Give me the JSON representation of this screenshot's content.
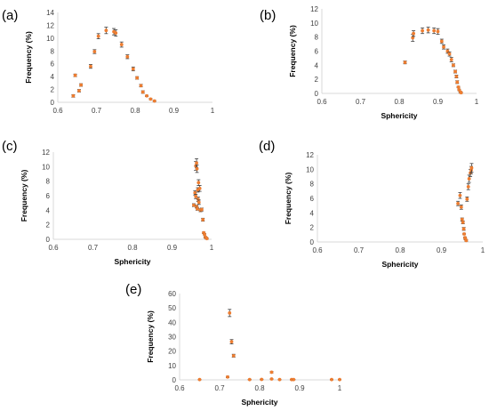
{
  "colors": {
    "points": "#ed7d31",
    "error_bars": "#404040",
    "axis": "#d9d9d9"
  },
  "chart_data": [
    {
      "id": "a",
      "type": "scatter",
      "panel_label": "(a)",
      "xlabel": "",
      "ylabel": "Frequency (%)",
      "xlim": [
        0.6,
        1
      ],
      "ylim": [
        0,
        14
      ],
      "xticks": [
        "0.6",
        "0.7",
        "0.8",
        "0.9",
        "1"
      ],
      "yticks": [
        "0",
        "2",
        "4",
        "6",
        "8",
        "10",
        "12",
        "14"
      ],
      "x": [
        0.64,
        0.645,
        0.655,
        0.66,
        0.685,
        0.695,
        0.705,
        0.725,
        0.745,
        0.75,
        0.765,
        0.78,
        0.795,
        0.805,
        0.815,
        0.82,
        0.83,
        0.84,
        0.85
      ],
      "y": [
        1.0,
        4.2,
        1.8,
        2.7,
        5.6,
        7.9,
        10.3,
        11.2,
        11.0,
        10.8,
        9.0,
        7.1,
        5.2,
        3.8,
        2.6,
        1.6,
        1.0,
        0.5,
        0.2
      ],
      "err": [
        0.2,
        0.2,
        0.2,
        0.2,
        0.3,
        0.3,
        0.4,
        0.5,
        0.5,
        0.5,
        0.4,
        0.3,
        0.3,
        0.2,
        0.2,
        0.2,
        0.1,
        0.1,
        0.1
      ]
    },
    {
      "id": "b",
      "type": "scatter",
      "panel_label": "(b)",
      "xlabel": "Sphericity",
      "ylabel": "Frequency (%)",
      "xlim": [
        0.6,
        1
      ],
      "ylim": [
        0,
        12
      ],
      "xticks": [
        "0.6",
        "0.7",
        "0.8",
        "0.9",
        "1"
      ],
      "yticks": [
        "0",
        "2",
        "4",
        "6",
        "8",
        "10",
        "12"
      ],
      "x": [
        0.815,
        0.835,
        0.837,
        0.86,
        0.875,
        0.89,
        0.9,
        0.91,
        0.915,
        0.925,
        0.93,
        0.935,
        0.94,
        0.945,
        0.948,
        0.95,
        0.953,
        0.955,
        0.958,
        0.96
      ],
      "y": [
        4.4,
        7.9,
        8.5,
        8.9,
        9.0,
        8.9,
        8.8,
        7.4,
        6.6,
        6.0,
        5.6,
        4.8,
        4.0,
        3.1,
        2.4,
        1.6,
        0.9,
        0.5,
        0.2,
        0.1
      ],
      "err": [
        0.2,
        0.5,
        0.4,
        0.4,
        0.4,
        0.4,
        0.4,
        0.3,
        0.3,
        0.3,
        0.3,
        0.3,
        0.2,
        0.2,
        0.2,
        0.2,
        0.1,
        0.1,
        0.1,
        0.1
      ]
    },
    {
      "id": "c",
      "type": "scatter",
      "panel_label": "(c)",
      "xlabel": "Sphericity",
      "ylabel": "Frequency (%)",
      "xlim": [
        0.6,
        1
      ],
      "ylim": [
        0,
        12
      ],
      "xticks": [
        "0.6",
        "0.7",
        "0.8",
        "0.9",
        "1"
      ],
      "yticks": [
        "0",
        "2",
        "4",
        "6",
        "8",
        "10",
        "12"
      ],
      "x": [
        0.955,
        0.958,
        0.96,
        0.962,
        0.963,
        0.965,
        0.966,
        0.968,
        0.96,
        0.962,
        0.964,
        0.967,
        0.97,
        0.972,
        0.975,
        0.978,
        0.98,
        0.982,
        0.984,
        0.986,
        0.988
      ],
      "y": [
        4.7,
        6.4,
        10.1,
        10.5,
        9.7,
        6.8,
        5.5,
        5.1,
        5.9,
        4.5,
        4.2,
        7.8,
        7.0,
        4.0,
        4.1,
        2.7,
        0.9,
        0.7,
        0.3,
        0.2,
        0.1
      ],
      "err": [
        0.2,
        0.3,
        0.6,
        0.6,
        0.5,
        0.3,
        0.3,
        0.3,
        0.3,
        0.2,
        0.2,
        0.4,
        0.4,
        0.2,
        0.2,
        0.2,
        0.1,
        0.1,
        0.1,
        0.1,
        0.1
      ]
    },
    {
      "id": "d",
      "type": "scatter",
      "panel_label": "(d)",
      "xlabel": "Sphericity",
      "ylabel": "Frequency (%)",
      "xlim": [
        0.6,
        1
      ],
      "ylim": [
        0,
        12
      ],
      "xticks": [
        "0.6",
        "0.7",
        "0.8",
        "0.9",
        "1"
      ],
      "yticks": [
        "0",
        "2",
        "4",
        "6",
        "8",
        "10",
        "12"
      ],
      "x": [
        0.94,
        0.945,
        0.948,
        0.95,
        0.952,
        0.954,
        0.955,
        0.957,
        0.958,
        0.96,
        0.962,
        0.965,
        0.967,
        0.97,
        0.972,
        0.973
      ],
      "y": [
        5.3,
        6.4,
        4.8,
        3.1,
        2.7,
        1.8,
        1.1,
        0.6,
        0.4,
        0.2,
        5.9,
        7.6,
        8.7,
        9.5,
        9.9,
        10.2
      ],
      "err": [
        0.3,
        0.4,
        0.3,
        0.2,
        0.2,
        0.2,
        0.1,
        0.1,
        0.1,
        0.1,
        0.3,
        0.4,
        0.5,
        0.5,
        0.5,
        0.6
      ]
    },
    {
      "id": "e",
      "type": "scatter",
      "panel_label": "(e)",
      "xlabel": "Sphericity",
      "ylabel": "Frequency (%)",
      "xlim": [
        0.6,
        1
      ],
      "ylim": [
        0,
        60
      ],
      "xticks": [
        "0.6",
        "0.7",
        "0.8",
        "0.9",
        "1"
      ],
      "yticks": [
        "0",
        "10",
        "20",
        "30",
        "40",
        "50",
        "60"
      ],
      "x": [
        0.65,
        0.72,
        0.725,
        0.73,
        0.735,
        0.775,
        0.805,
        0.83,
        0.83,
        0.85,
        0.88,
        0.885,
        0.98,
        1.0
      ],
      "y": [
        0.2,
        2.0,
        46.5,
        26.5,
        16.8,
        0.2,
        0.3,
        5.3,
        0.6,
        0.2,
        0.2,
        0.2,
        0.2,
        0.2
      ],
      "err": [
        0.2,
        0.5,
        2.5,
        1.5,
        1.0,
        0.2,
        0.2,
        0.5,
        0.2,
        0.2,
        0.2,
        0.2,
        0.2,
        0.2
      ]
    }
  ]
}
